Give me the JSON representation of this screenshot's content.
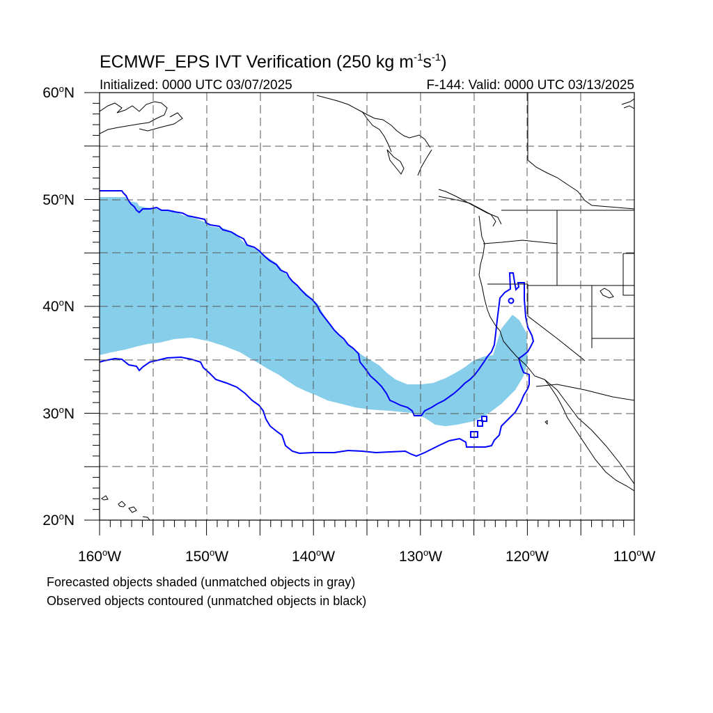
{
  "title": {
    "prefix": "ECMWF_EPS IVT Verification (250 kg m",
    "exp1": "-1",
    "mid": "s",
    "exp2": "-1",
    "suffix": ")"
  },
  "subtitle_left": "Initialized: 0000 UTC 03/07/2025",
  "subtitle_right": "F-144: Valid: 0000 UTC 03/13/2025",
  "lat_labels": [
    "60",
    "50",
    "40",
    "30",
    "20"
  ],
  "lon_labels": [
    "160",
    "150",
    "140",
    "130",
    "120",
    "110"
  ],
  "degree_symbol": "o",
  "lat_hemisphere": "N",
  "lon_hemisphere": "W",
  "caption": [
    "Forecasted objects shaded (unmatched objects in gray)",
    "Observed objects contoured (unmatched objects in black)"
  ],
  "colors": {
    "forecast_fill": "#87ceeb",
    "observed_contour": "#0000ff",
    "coastline": "#000000",
    "grid": "#555555"
  },
  "map": {
    "projection": "cylindrical equidistant",
    "lon_range_deg": [
      -160,
      -110
    ],
    "lat_range_deg": [
      20,
      60
    ],
    "major_grid_deg": 5,
    "minor_tick_deg": 1,
    "grid_style": "dashed"
  }
}
